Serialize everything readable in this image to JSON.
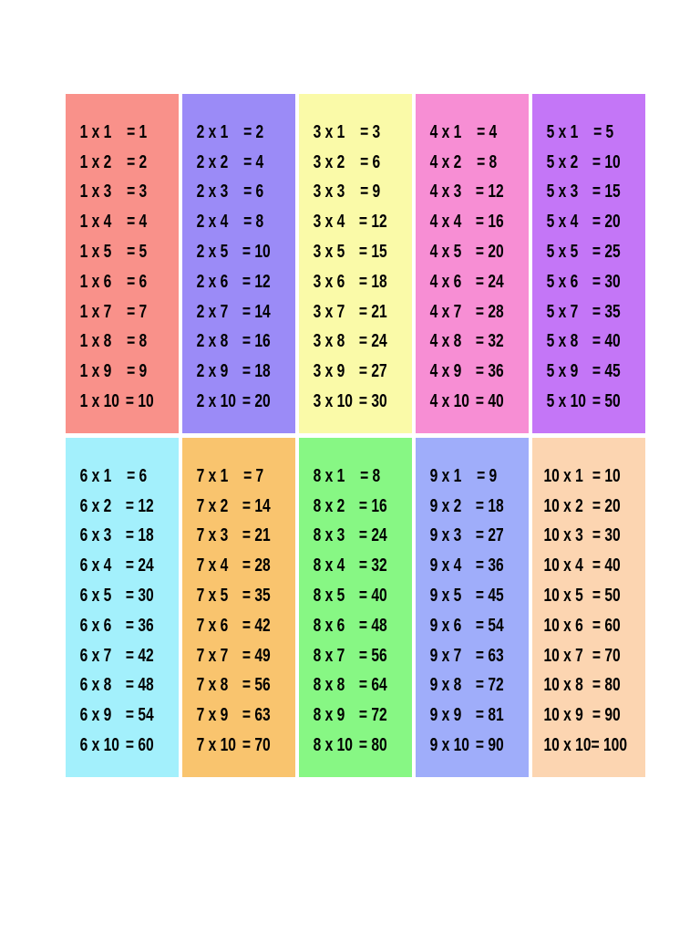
{
  "tables": [
    {
      "color": "#f9918a",
      "rows": [
        {
          "expr": "1 x 1",
          "result": "= 1"
        },
        {
          "expr": "1 x 2",
          "result": "= 2"
        },
        {
          "expr": "1 x 3",
          "result": "= 3"
        },
        {
          "expr": "1 x 4",
          "result": "= 4"
        },
        {
          "expr": "1 x 5",
          "result": "= 5"
        },
        {
          "expr": "1 x 6",
          "result": "= 6"
        },
        {
          "expr": "1 x 7",
          "result": "= 7"
        },
        {
          "expr": "1 x 8",
          "result": "= 8"
        },
        {
          "expr": "1 x 9",
          "result": "= 9"
        },
        {
          "expr": "1 x 10",
          "result": "= 10"
        }
      ]
    },
    {
      "color": "#9b8bf7",
      "rows": [
        {
          "expr": "2 x 1",
          "result": "= 2"
        },
        {
          "expr": "2 x 2",
          "result": "= 4"
        },
        {
          "expr": "2 x 3",
          "result": "= 6"
        },
        {
          "expr": "2 x 4",
          "result": "= 8"
        },
        {
          "expr": "2 x 5",
          "result": "= 10"
        },
        {
          "expr": "2 x 6",
          "result": "= 12"
        },
        {
          "expr": "2 x 7",
          "result": "= 14"
        },
        {
          "expr": "2 x 8",
          "result": "= 16"
        },
        {
          "expr": "2 x 9",
          "result": "= 18"
        },
        {
          "expr": "2 x 10",
          "result": "= 20"
        }
      ]
    },
    {
      "color": "#fafaa8",
      "rows": [
        {
          "expr": "3 x 1",
          "result": "= 3"
        },
        {
          "expr": "3 x 2",
          "result": "= 6"
        },
        {
          "expr": "3 x 3",
          "result": "= 9"
        },
        {
          "expr": "3 x 4",
          "result": "= 12"
        },
        {
          "expr": "3 x 5",
          "result": "= 15"
        },
        {
          "expr": "3 x 6",
          "result": "= 18"
        },
        {
          "expr": "3 x 7",
          "result": "= 21"
        },
        {
          "expr": "3 x 8",
          "result": "= 24"
        },
        {
          "expr": "3 x 9",
          "result": "= 27"
        },
        {
          "expr": "3 x 10",
          "result": "= 30"
        }
      ]
    },
    {
      "color": "#f78ed4",
      "rows": [
        {
          "expr": "4 x 1",
          "result": "= 4"
        },
        {
          "expr": "4 x 2",
          "result": "= 8"
        },
        {
          "expr": "4 x 3",
          "result": "= 12"
        },
        {
          "expr": "4 x 4",
          "result": "= 16"
        },
        {
          "expr": "4 x 5",
          "result": "= 20"
        },
        {
          "expr": "4 x 6",
          "result": "= 24"
        },
        {
          "expr": "4 x 7",
          "result": "= 28"
        },
        {
          "expr": "4 x 8",
          "result": "= 32"
        },
        {
          "expr": "4 x 9",
          "result": "= 36"
        },
        {
          "expr": "4 x 10",
          "result": "= 40"
        }
      ]
    },
    {
      "color": "#c476f7",
      "rows": [
        {
          "expr": "5 x 1",
          "result": "= 5"
        },
        {
          "expr": "5 x 2",
          "result": "= 10"
        },
        {
          "expr": "5 x 3",
          "result": "= 15"
        },
        {
          "expr": "5 x 4",
          "result": "= 20"
        },
        {
          "expr": "5 x 5",
          "result": "= 25"
        },
        {
          "expr": "5 x 6",
          "result": "= 30"
        },
        {
          "expr": "5 x 7",
          "result": "= 35"
        },
        {
          "expr": "5 x 8",
          "result": "= 40"
        },
        {
          "expr": "5 x 9",
          "result": "= 45"
        },
        {
          "expr": "5 x 10",
          "result": "= 50"
        }
      ]
    },
    {
      "color": "#a3f0fc",
      "rows": [
        {
          "expr": "6 x 1",
          "result": "= 6"
        },
        {
          "expr": "6 x 2",
          "result": "= 12"
        },
        {
          "expr": "6 x 3",
          "result": "= 18"
        },
        {
          "expr": "6 x 4",
          "result": "= 24"
        },
        {
          "expr": "6 x 5",
          "result": "= 30"
        },
        {
          "expr": "6 x 6",
          "result": "= 36"
        },
        {
          "expr": "6 x 7",
          "result": "= 42"
        },
        {
          "expr": "6 x 8",
          "result": "= 48"
        },
        {
          "expr": "6 x 9",
          "result": "= 54"
        },
        {
          "expr": "6 x 10",
          "result": "= 60"
        }
      ]
    },
    {
      "color": "#f9c46e",
      "rows": [
        {
          "expr": "7 x 1",
          "result": "= 7"
        },
        {
          "expr": "7 x 2",
          "result": "= 14"
        },
        {
          "expr": "7 x 3",
          "result": "= 21"
        },
        {
          "expr": "7 x 4",
          "result": "= 28"
        },
        {
          "expr": "7 x 5",
          "result": "= 35"
        },
        {
          "expr": "7 x 6",
          "result": "= 42"
        },
        {
          "expr": "7 x 7",
          "result": "= 49"
        },
        {
          "expr": "7 x 8",
          "result": "= 56"
        },
        {
          "expr": "7 x 9",
          "result": "= 63"
        },
        {
          "expr": "7 x 10",
          "result": "= 70"
        }
      ]
    },
    {
      "color": "#87f784",
      "rows": [
        {
          "expr": "8 x 1",
          "result": "= 8"
        },
        {
          "expr": "8 x 2",
          "result": "= 16"
        },
        {
          "expr": "8 x 3",
          "result": "= 24"
        },
        {
          "expr": "8 x 4",
          "result": "= 32"
        },
        {
          "expr": "8 x 5",
          "result": "= 40"
        },
        {
          "expr": "8 x 6",
          "result": "= 48"
        },
        {
          "expr": "8 x 7",
          "result": "= 56"
        },
        {
          "expr": "8 x 8",
          "result": "= 64"
        },
        {
          "expr": "8 x 9",
          "result": "= 72"
        },
        {
          "expr": "8 x 10",
          "result": "= 80"
        }
      ]
    },
    {
      "color": "#9fadfa",
      "rows": [
        {
          "expr": "9 x 1",
          "result": "= 9"
        },
        {
          "expr": "9 x 2",
          "result": "= 18"
        },
        {
          "expr": "9 x 3",
          "result": "= 27"
        },
        {
          "expr": "9 x 4",
          "result": "= 36"
        },
        {
          "expr": "9 x 5",
          "result": "= 45"
        },
        {
          "expr": "9 x 6",
          "result": "= 54"
        },
        {
          "expr": "9 x 7",
          "result": "= 63"
        },
        {
          "expr": "9 x 8",
          "result": "= 72"
        },
        {
          "expr": "9 x 9",
          "result": "= 81"
        },
        {
          "expr": "9 x 10",
          "result": "= 90"
        }
      ]
    },
    {
      "color": "#fcd5b1",
      "rows": [
        {
          "expr": "10 x 1",
          "result": "= 10"
        },
        {
          "expr": "10 x 2",
          "result": "= 20"
        },
        {
          "expr": "10 x 3",
          "result": "= 30"
        },
        {
          "expr": "10 x 4",
          "result": "= 40"
        },
        {
          "expr": "10 x 5",
          "result": "= 50"
        },
        {
          "expr": "10 x 6",
          "result": "= 60"
        },
        {
          "expr": "10 x 7",
          "result": "= 70"
        },
        {
          "expr": "10 x 8",
          "result": "= 80"
        },
        {
          "expr": "10 x 9",
          "result": "= 90"
        },
        {
          "expr": "10 x 10",
          "result": "= 100"
        }
      ]
    }
  ]
}
